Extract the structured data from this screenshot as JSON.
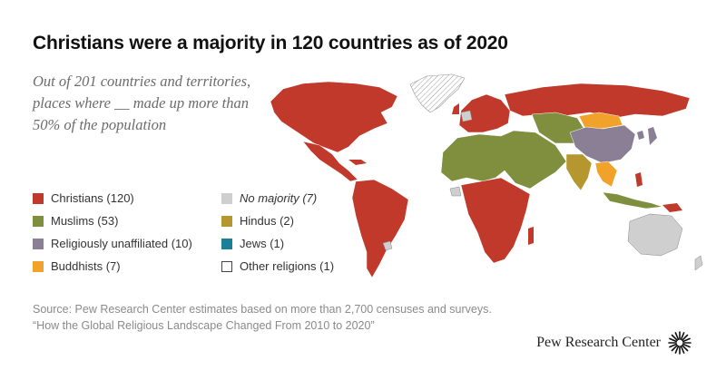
{
  "title": "Christians were a majority in 120 countries as of 2020",
  "subtitle": "Out of 201 countries and territories, places where __ made up more than 50% of the population",
  "legend": [
    {
      "label": "Christians (120)",
      "color": "#c0392b",
      "italic": false
    },
    {
      "label": "No majority (7)",
      "color": "#cfcfcf",
      "italic": true
    },
    {
      "label": "Muslims (53)",
      "color": "#7f8f3e",
      "italic": false
    },
    {
      "label": "Hindus (2)",
      "color": "#b6962e",
      "italic": false
    },
    {
      "label": "Religiously unaffiliated (10)",
      "color": "#8a7f95",
      "italic": false
    },
    {
      "label": "Jews (1)",
      "color": "#1a7f97",
      "italic": false
    },
    {
      "label": "Buddhists (7)",
      "color": "#f0a22a",
      "italic": false
    },
    {
      "label": "Other religions (1)",
      "color": "#ffffff",
      "italic": false
    }
  ],
  "source": {
    "line1": "Source: Pew Research Center estimates based on more than 2,700 censuses and surveys.",
    "line2": "“How the Global Religious Landscape Changed From 2010 to 2020”"
  },
  "brand": {
    "name": "Pew Research Center",
    "icon": "pew-sunburst-icon"
  },
  "colors": {
    "christian": "#c0392b",
    "muslim": "#7f8f3e",
    "unaffiliated": "#8a7f95",
    "buddhist": "#f0a22a",
    "no_majority": "#cfcfcf",
    "hindu": "#b6962e",
    "jew": "#1a7f97",
    "other": "#ffffff"
  }
}
